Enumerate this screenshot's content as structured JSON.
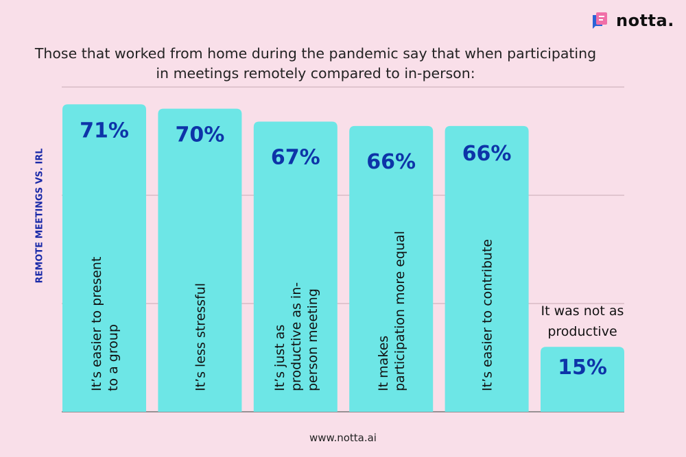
{
  "brand": {
    "name": "notta.",
    "colors": {
      "front": "#f06fa8",
      "back": "#2a63d6"
    }
  },
  "footer": "www.notta.ai",
  "chart_data": {
    "type": "bar",
    "title": "Those that worked from home during the pandemic say that when participating in meetings remotely compared to in-person:",
    "ylabel": "REMOTE MEETINGS VS. IRL",
    "xlabel": "",
    "ylim": [
      0,
      75
    ],
    "grid": true,
    "gridlines": [
      0,
      25,
      50,
      75
    ],
    "bar_color": "#6de6e6",
    "label_color": "#0d34a8",
    "categories": [
      [
        "It’s easier to present",
        "to a group"
      ],
      [
        "It’s less stressful"
      ],
      [
        "It’s just as",
        "productive as in-",
        "person meeting"
      ],
      [
        "It makes",
        "participation more equal"
      ],
      [
        "It’s easier to contribute"
      ],
      [
        "It was not as",
        "productive"
      ]
    ],
    "values": [
      71,
      70,
      67,
      66,
      66,
      15
    ],
    "value_labels": [
      "71%",
      "70%",
      "67%",
      "66%",
      "66%",
      "15%"
    ]
  }
}
